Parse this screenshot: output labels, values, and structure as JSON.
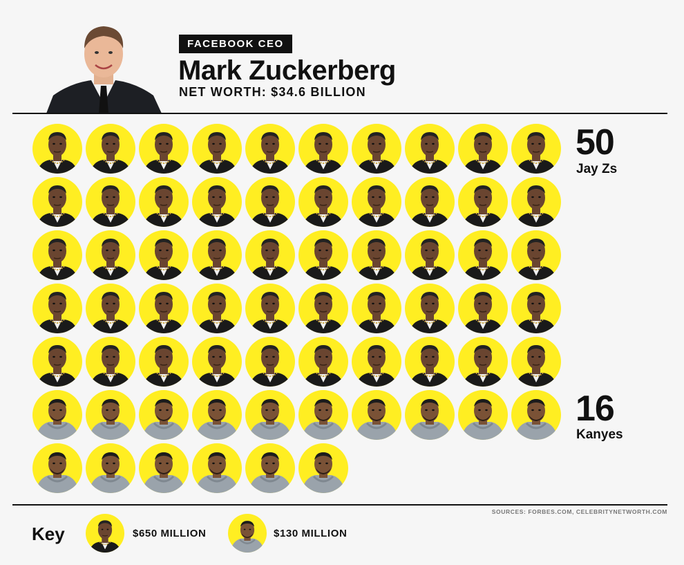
{
  "header": {
    "badge": "FACEBOOK CEO",
    "name": "Mark Zuckerberg",
    "net_worth": "NET WORTH: $34.6 BILLION"
  },
  "counts": {
    "jay_number": "50",
    "jay_label": "Jay Zs",
    "kanye_number": "16",
    "kanye_label": "Kanyes"
  },
  "sources": "SOURCES: FORBES.COM, CELEBRITYNETWORTH.COM",
  "key": {
    "title": "Key",
    "jay_value": "$650 MILLION",
    "kanye_value": "$130 MILLION"
  },
  "colors": {
    "accent": "#ffee22",
    "text": "#111111",
    "background": "#f6f6f6"
  },
  "chart_data": {
    "type": "pictogram",
    "title": "Mark Zuckerberg",
    "series": [
      {
        "name": "Jay Zs",
        "count": 50,
        "unit_value": "$650 MILLION"
      },
      {
        "name": "Kanyes",
        "count": 16,
        "unit_value": "$130 MILLION"
      }
    ],
    "columns": 10
  }
}
